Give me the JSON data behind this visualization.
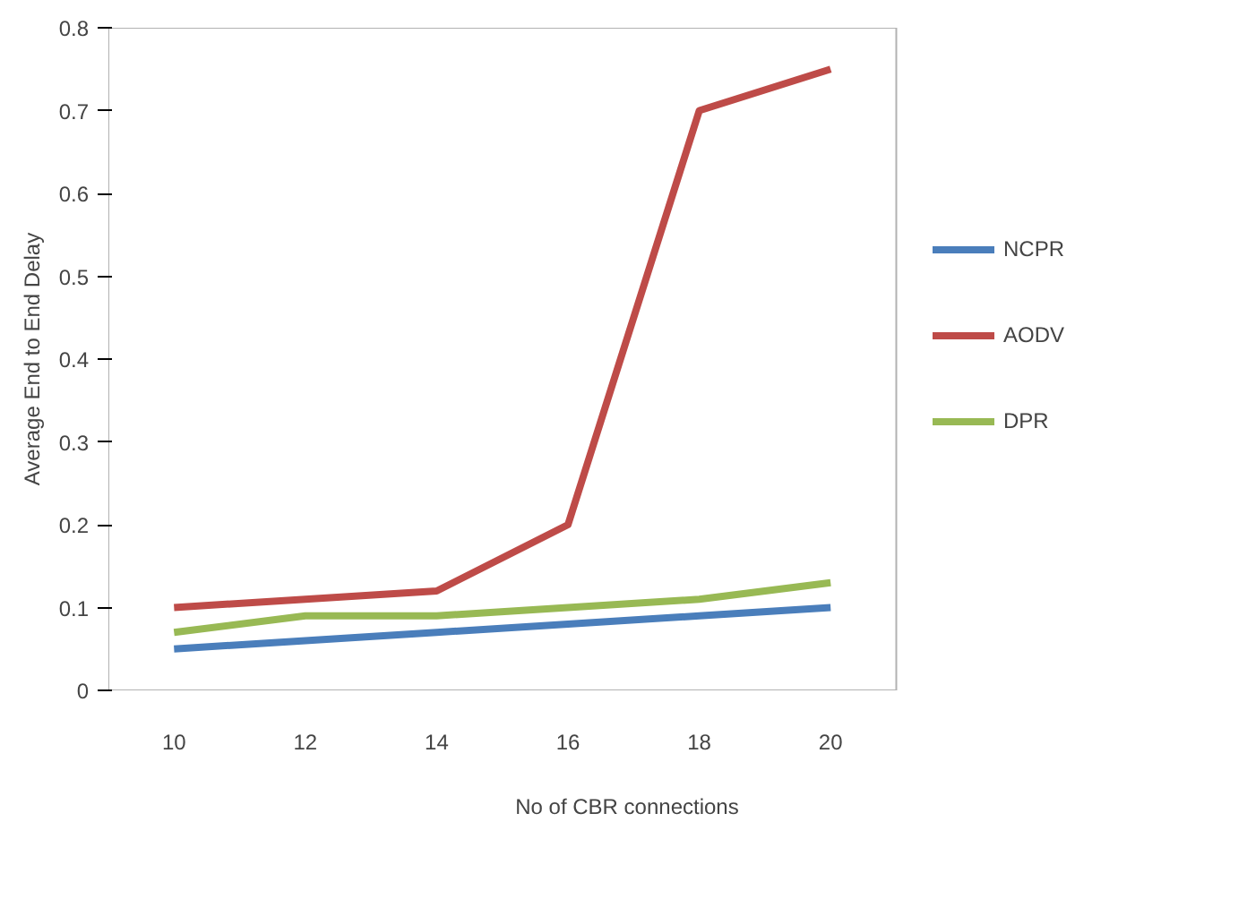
{
  "chart_data": {
    "type": "line",
    "xlabel": "No of CBR connections",
    "ylabel": "Average End to End Delay",
    "categories": [
      "10",
      "12",
      "14",
      "16",
      "18",
      "20"
    ],
    "series": [
      {
        "name": "NCPR",
        "color": "#4a7ebb",
        "values": [
          0.05,
          0.06,
          0.07,
          0.08,
          0.09,
          0.1
        ]
      },
      {
        "name": "AODV",
        "color": "#be4b48",
        "values": [
          0.1,
          0.11,
          0.12,
          0.2,
          0.7,
          0.75
        ]
      },
      {
        "name": "DPR",
        "color": "#98b954",
        "values": [
          0.07,
          0.09,
          0.09,
          0.1,
          0.11,
          0.13
        ]
      }
    ],
    "ylim": [
      0,
      0.8
    ],
    "yticks": [
      0,
      0.1,
      0.2,
      0.3,
      0.4,
      0.5,
      0.6,
      0.7,
      0.8
    ],
    "grid": false,
    "legend": "right",
    "marker": "none",
    "line_style": "solid"
  }
}
